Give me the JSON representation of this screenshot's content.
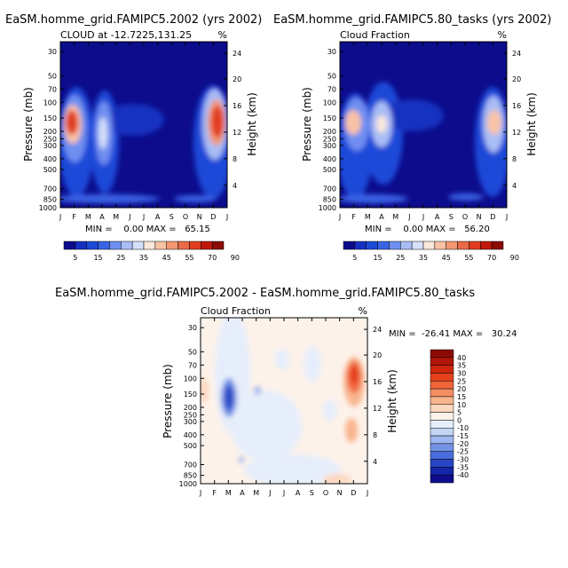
{
  "chart_data": [
    {
      "type": "heatmap",
      "title": "EaSM.homme_grid.FAMIPC5.2002 (yrs 2002)",
      "subtitle_left": "CLOUD at -12.7225,131.25",
      "subtitle_right": "%",
      "ylabel": "Pressure (mb)",
      "ylabel_right": "Height (km)",
      "x_ticks": [
        "J",
        "F",
        "M",
        "A",
        "M",
        "J",
        "J",
        "A",
        "S",
        "O",
        "N",
        "D",
        "J"
      ],
      "y_ticks": [
        "30",
        "50",
        "70",
        "100",
        "150",
        "200",
        "250",
        "300",
        "400",
        "500",
        "700",
        "850",
        "1000"
      ],
      "height_ticks": [
        "24",
        "20",
        "16",
        "12",
        "8",
        "4"
      ],
      "min_max_text": "MIN =    0.00 MAX =   65.15",
      "colorbar_labels": [
        "5",
        "15",
        "25",
        "35",
        "45",
        "55",
        "70",
        "90"
      ],
      "colorbar_colors": [
        "#0c0c8c",
        "#1530c0",
        "#1e4ad8",
        "#3a64e6",
        "#6f8ff0",
        "#a9bdf5",
        "#d6e0fb",
        "#fbe7db",
        "#f9c2a5",
        "#f39772",
        "#ea6a48",
        "#e13e21",
        "#c0180b",
        "#8c0a05"
      ]
    },
    {
      "type": "heatmap",
      "title": "EaSM.homme_grid.FAMIPC5.80_tasks (yrs 2002)",
      "subtitle_left": "Cloud Fraction",
      "subtitle_right": "%",
      "ylabel": "Pressure (mb)",
      "ylabel_right": "Height (km)",
      "x_ticks": [
        "J",
        "F",
        "M",
        "A",
        "M",
        "J",
        "J",
        "A",
        "S",
        "O",
        "N",
        "D",
        "J"
      ],
      "y_ticks": [
        "30",
        "50",
        "70",
        "100",
        "150",
        "200",
        "250",
        "300",
        "400",
        "500",
        "700",
        "850",
        "1000"
      ],
      "height_ticks": [
        "24",
        "20",
        "16",
        "12",
        "8",
        "4"
      ],
      "min_max_text": "MIN =    0.00 MAX =   56.20",
      "colorbar_labels": [
        "5",
        "15",
        "25",
        "35",
        "45",
        "55",
        "70",
        "90"
      ],
      "colorbar_colors": [
        "#0c0c8c",
        "#1530c0",
        "#1e4ad8",
        "#3a64e6",
        "#6f8ff0",
        "#a9bdf5",
        "#d6e0fb",
        "#fbe7db",
        "#f9c2a5",
        "#f39772",
        "#ea6a48",
        "#e13e21",
        "#c0180b",
        "#8c0a05"
      ]
    },
    {
      "type": "heatmap",
      "title": "EaSM.homme_grid.FAMIPC5.2002 - EaSM.homme_grid.FAMIPC5.80_tasks",
      "subtitle_left": "Cloud Fraction",
      "subtitle_right": "%",
      "ylabel": "Pressure (mb)",
      "ylabel_right": "Height (km)",
      "x_ticks": [
        "J",
        "F",
        "M",
        "A",
        "M",
        "J",
        "J",
        "A",
        "S",
        "O",
        "N",
        "D",
        "J"
      ],
      "y_ticks": [
        "30",
        "50",
        "70",
        "100",
        "150",
        "200",
        "250",
        "300",
        "400",
        "500",
        "700",
        "850",
        "1000"
      ],
      "height_ticks": [
        "24",
        "20",
        "16",
        "12",
        "8",
        "4"
      ],
      "min_max_text": "MIN =  -26.41 MAX =   30.24",
      "colorbar_labels": [
        "40",
        "35",
        "30",
        "25",
        "20",
        "15",
        "10",
        "5",
        "0",
        "-10",
        "-15",
        "-20",
        "-25",
        "-30",
        "-35",
        "-40"
      ],
      "colorbar_colors": [
        "#8c0a05",
        "#b01508",
        "#cf260f",
        "#e5421c",
        "#f0663a",
        "#f58e62",
        "#f9b590",
        "#fcd7bf",
        "#fdf2ea",
        "#e6eefb",
        "#c4d6f6",
        "#9fb8ef",
        "#7393e6",
        "#4a6cdb",
        "#2745c5",
        "#1426a8",
        "#0c0c8c"
      ]
    }
  ]
}
